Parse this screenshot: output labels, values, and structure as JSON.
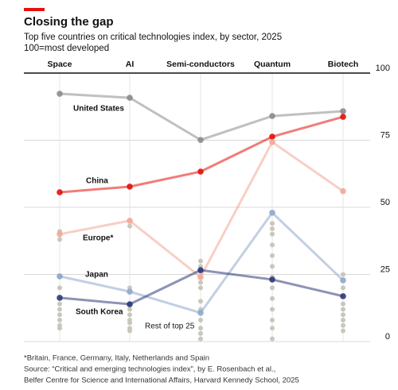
{
  "chart_data": {
    "type": "line",
    "title": "Closing the gap",
    "subtitle": "Top five countries on critical technologies index, by sector, 2025",
    "scale_note": "100=most developed",
    "categories": [
      "Space",
      "AI",
      "Semi-conductors",
      "Quantum",
      "Biotech"
    ],
    "ylim": [
      0,
      100
    ],
    "yticks": [
      0,
      25,
      50,
      75,
      100
    ],
    "grid": true,
    "series": [
      {
        "name": "United States",
        "color": "#8c8c8c",
        "values": [
          92.3,
          90.8,
          75.1,
          84,
          85.8
        ]
      },
      {
        "name": "China",
        "color": "#e3120b",
        "values": [
          55.6,
          57.7,
          63.3,
          76.3,
          83.7
        ]
      },
      {
        "name": "Europe*",
        "color": "#f0a898",
        "values": [
          40,
          45,
          24,
          74.3,
          56
        ]
      },
      {
        "name": "Japan",
        "color": "#8fa8cc",
        "values": [
          24.3,
          18.6,
          10.7,
          48,
          22.8
        ]
      },
      {
        "name": "South Korea",
        "color": "#2d3a7a",
        "values": [
          16.3,
          13.9,
          26.6,
          23.1,
          16.9
        ]
      }
    ],
    "rest": {
      "name": "Rest of top 25",
      "color": "#c9c7bb",
      "values": [
        [
          41,
          38,
          24,
          20,
          14,
          12,
          10,
          8,
          6,
          5
        ],
        [
          43,
          20,
          14,
          12,
          10,
          8,
          7,
          5,
          4
        ],
        [
          30,
          28,
          26,
          22,
          20,
          15,
          12,
          8,
          5,
          3,
          1
        ],
        [
          44,
          42,
          40,
          36,
          32,
          28,
          24,
          20,
          16,
          12,
          8,
          5,
          1
        ],
        [
          25,
          20,
          14,
          12,
          10,
          8,
          6,
          4
        ]
      ]
    },
    "footnotes": [
      "*Britain, France, Germany, Italy, Netherlands and Spain",
      "Source: “Critical and emerging technologies index”, by E. Rosenbach et al.,",
      "Belfer Centre for Science and International Affairs, Harvard Kennedy School, 2025"
    ]
  }
}
